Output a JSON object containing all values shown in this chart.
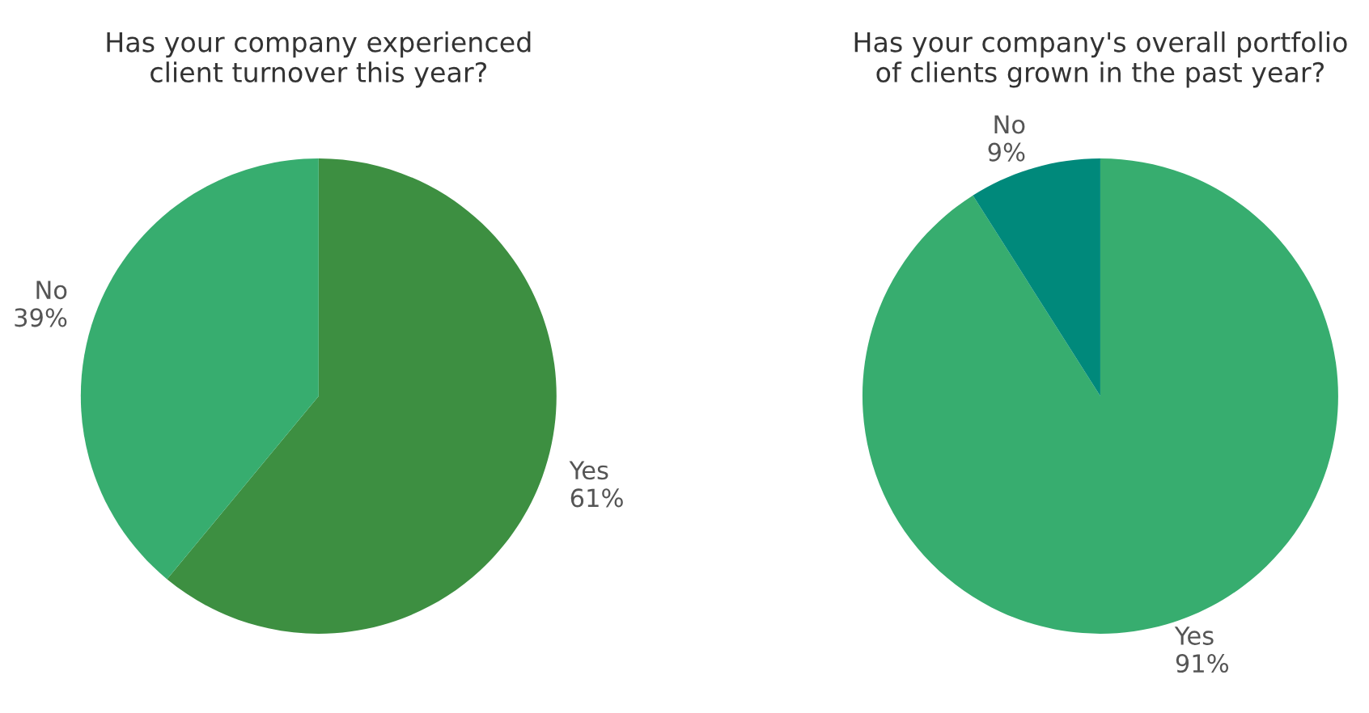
{
  "chart_data": [
    {
      "type": "pie",
      "title": "Has your company experienced\nclient turnover this year?",
      "categories": [
        "Yes",
        "No"
      ],
      "values": [
        61,
        39
      ],
      "value_labels": [
        "61%",
        "39%"
      ],
      "colors": [
        "#3d8f41",
        "#37ad6f"
      ]
    },
    {
      "type": "pie",
      "title": "Has your company's overall portfolio\nof clients grown in the past year?",
      "categories": [
        "Yes",
        "No"
      ],
      "values": [
        91,
        9
      ],
      "value_labels": [
        "91%",
        "9%"
      ],
      "colors": [
        "#37ad6f",
        "#00897b"
      ]
    }
  ]
}
